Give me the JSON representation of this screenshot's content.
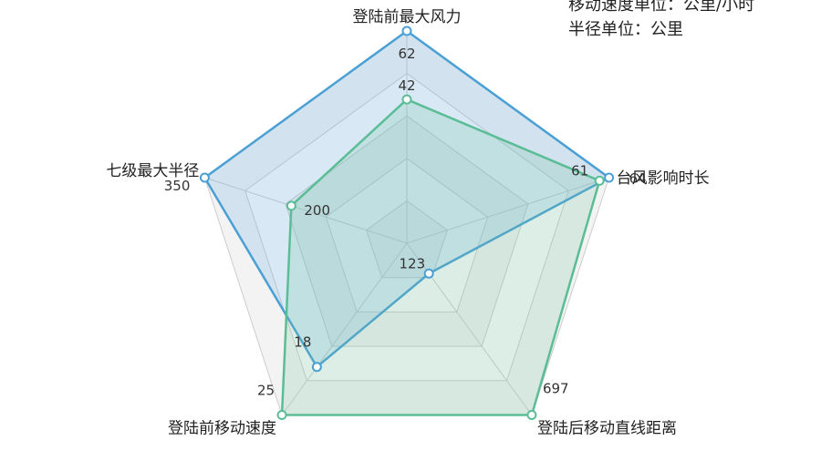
{
  "notes": {
    "line1": "移动速度单位：公里/小时",
    "line2": "半径单位：公里"
  },
  "chart_data": {
    "type": "radar",
    "indicators": [
      "登陆前最大风力",
      "台风影响时长",
      "登陆后移动直线距离",
      "登陆前移动速度",
      "七级最大半径"
    ],
    "series": [
      {
        "values": [
          62,
          64,
          123,
          18,
          350
        ],
        "color": "#4a9fd4",
        "fill": "rgba(94,168,222,0.22)"
      },
      {
        "values": [
          42,
          61,
          697,
          25,
          200
        ],
        "color": "#5bbd96",
        "fill": "rgba(112,196,160,0.22)"
      }
    ]
  }
}
